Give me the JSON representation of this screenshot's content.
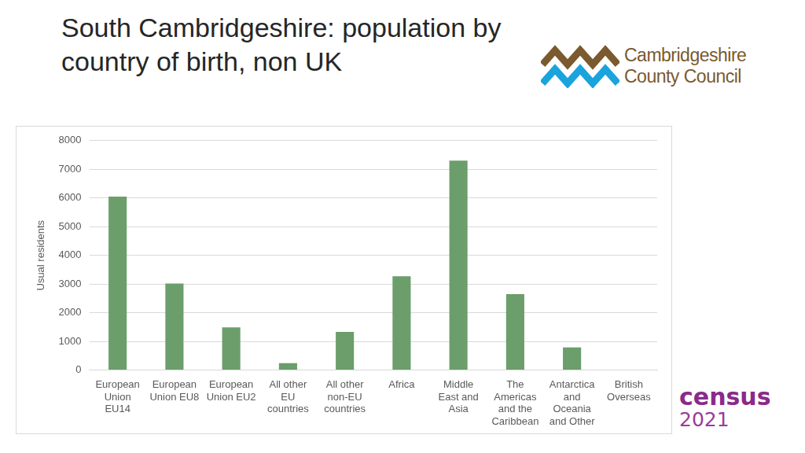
{
  "page": {
    "title": "South Cambridgeshire: population by country of birth, non UK",
    "logo_lines": [
      "Cambridgeshire",
      "County Council"
    ],
    "census_logo": [
      "census",
      "2021"
    ]
  },
  "chart_data": {
    "type": "bar",
    "y_label": "Usual residents",
    "categories": [
      "European Union EU14",
      "European Union EU8",
      "European Union EU2",
      "All other EU countries",
      "All other non-EU countries",
      "Africa",
      "Middle East and Asia",
      "The Americas and the Caribbean",
      "Antarctica and Oceania and Other",
      "British Overseas"
    ],
    "values": [
      6050,
      3020,
      1490,
      240,
      1330,
      3270,
      7300,
      2650,
      790,
      0
    ],
    "color": "#6b9e6b",
    "ylim": [
      0,
      8000
    ],
    "yticks": [
      0,
      1000,
      2000,
      3000,
      4000,
      5000,
      6000,
      7000,
      8000
    ],
    "grid": true
  }
}
